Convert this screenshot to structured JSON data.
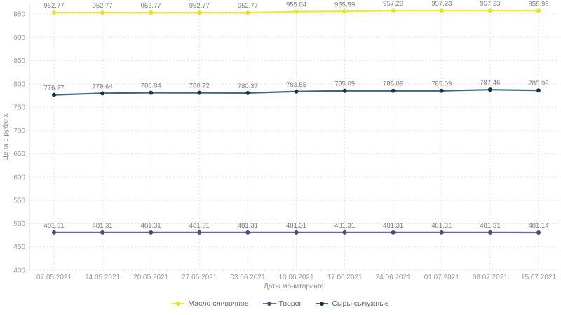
{
  "chart_data": {
    "type": "line",
    "title": "",
    "x": [
      "07.05.2021",
      "14.05.2021",
      "20.05.2021",
      "27.05.2021",
      "03.06.2021",
      "10.06.2021",
      "17.06.2021",
      "24.06.2021",
      "01.07.2021",
      "08.07.2021",
      "15.07.2021"
    ],
    "series": [
      {
        "name": "Масло сливочное",
        "color": "#f0e545",
        "marker_color": "#e9e02c",
        "values": [
          952.77,
          952.77,
          952.77,
          952.77,
          952.77,
          955.04,
          955.59,
          957.23,
          957.23,
          957.23,
          956.99
        ]
      },
      {
        "name": "Творог",
        "color": "#666a9f",
        "marker_color": "#4a4d84",
        "values": [
          481.31,
          481.31,
          481.31,
          481.31,
          481.31,
          481.31,
          481.31,
          481.31,
          481.31,
          481.31,
          481.14
        ]
      },
      {
        "name": "Сыры сычужные",
        "color": "#3f687e",
        "marker_color": "#16324c",
        "values": [
          776.27,
          779.64,
          780.84,
          780.72,
          780.37,
          783.55,
          785.09,
          785.09,
          785.09,
          787.46,
          785.92
        ]
      }
    ],
    "xlabel": "Даты мониторинга",
    "ylabel": "Цена в рублях",
    "ylim": [
      400,
      950
    ],
    "yticks": [
      400,
      450,
      500,
      550,
      600,
      650,
      700,
      750,
      800,
      850,
      900,
      950
    ],
    "grid": true,
    "legend_position": "bottom",
    "label_decimals": 2
  },
  "style": {
    "background": "#ffffff",
    "grid_color": "#e3e3e3",
    "axis_color": "#d6d6d6",
    "tick_text_color": "#9b9b9b",
    "data_label_color": "#7f7f7f",
    "axis_title_color": "#8f8f8f",
    "legend_text_color": "#666666"
  }
}
